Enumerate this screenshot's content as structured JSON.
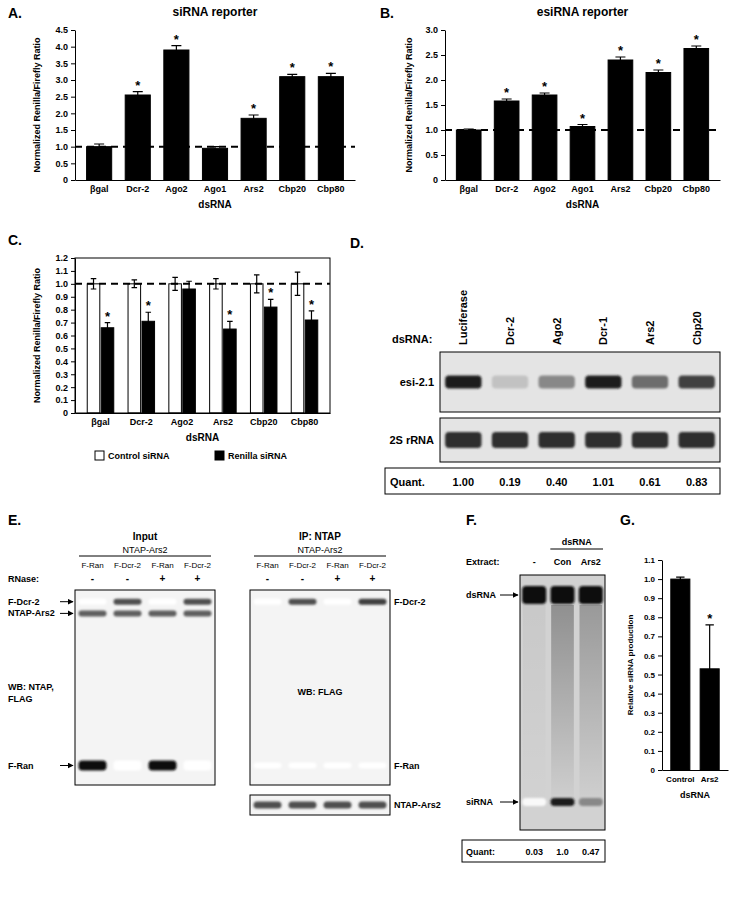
{
  "chart_data": [
    {
      "type": "bar",
      "panel_label": "A.",
      "title": "siRNA reporter",
      "x_label": "dsRNA",
      "y_label": "Normalized Renilla/Firefly Ratio",
      "categories": [
        "βgal",
        "Dcr-2",
        "Ago2",
        "Ago1",
        "Ars2",
        "Cbp20",
        "Cbp80"
      ],
      "values": [
        1.0,
        2.55,
        3.9,
        0.95,
        1.85,
        3.1,
        3.1
      ],
      "errors": [
        0.08,
        0.1,
        0.13,
        0.05,
        0.1,
        0.07,
        0.1
      ],
      "significance": [
        null,
        "*",
        "*",
        null,
        "*",
        "*",
        "*"
      ],
      "reference_line": 1,
      "color": "#000000",
      "ylim": [
        0,
        4.5
      ],
      "yticks": [
        0,
        0.5,
        {
          "value": 1,
          "label": "1.0"
        },
        1.5,
        {
          "value": 2,
          "label": "2.0"
        },
        2.5,
        {
          "value": 3,
          "label": "3.0"
        },
        3.5,
        {
          "value": 4,
          "label": "4.0"
        },
        4.5
      ]
    },
    {
      "type": "bar",
      "panel_label": "B.",
      "title": "esiRNA reporter",
      "x_label": "dsRNA",
      "y_label": "Normalized Renilla/Firefly Ratio",
      "categories": [
        "βgal",
        "Dcr-2",
        "Ago2",
        "Ago1",
        "Ars2",
        "Cbp20",
        "Cbp80"
      ],
      "values": [
        1.0,
        1.58,
        1.7,
        1.07,
        2.4,
        2.15,
        2.63
      ],
      "errors": [
        0.02,
        0.04,
        0.04,
        0.04,
        0.06,
        0.05,
        0.05
      ],
      "significance": [
        null,
        "*",
        "*",
        "*",
        "*",
        "*",
        "*"
      ],
      "reference_line": 1,
      "color": "#000000",
      "ylim": [
        0,
        3
      ],
      "yticks": [
        0,
        0.5,
        {
          "value": 1,
          "label": "1.0"
        },
        1.5,
        {
          "value": 2,
          "label": "2.0"
        },
        2.5,
        {
          "value": 3,
          "label": "3.0"
        }
      ]
    },
    {
      "type": "bar",
      "panel_label": "C.",
      "x_label": "dsRNA",
      "y_label": "Normalized Renilla/Firefly Ratio",
      "categories": [
        "βgal",
        "Dcr-2",
        "Ago2",
        "Ars2",
        "Cbp20",
        "Cbp80"
      ],
      "series": [
        {
          "name": "Control siRNA",
          "color": "#ffffff",
          "values": [
            1.0,
            1.0,
            1.0,
            1.0,
            1.0,
            1.0
          ],
          "errors": [
            0.04,
            0.03,
            0.05,
            0.04,
            0.07,
            0.09
          ]
        },
        {
          "name": "Renilla siRNA",
          "color": "#000000",
          "values": [
            0.66,
            0.71,
            0.96,
            0.65,
            0.82,
            0.72
          ],
          "errors": [
            0.04,
            0.07,
            0.06,
            0.06,
            0.06,
            0.07
          ],
          "significance": [
            "*",
            "*",
            null,
            "*",
            "*",
            "*"
          ]
        }
      ],
      "legend": "bottom",
      "reference_line": 1,
      "ylim": [
        0,
        1.2
      ],
      "yticks": [
        0,
        0.1,
        0.2,
        0.3,
        0.4,
        0.5,
        0.6,
        0.7,
        0.8,
        0.9,
        {
          "value": 1,
          "label": "1.0"
        },
        1.1,
        1.2
      ]
    },
    {
      "type": "bar",
      "panel_label": "G.",
      "x_label": "dsRNA",
      "y_label": "Relative siRNA production",
      "categories": [
        "Control",
        "Ars2"
      ],
      "values": [
        1.0,
        0.53
      ],
      "errors": [
        0.01,
        0.23
      ],
      "significance": [
        null,
        "*"
      ],
      "color": "#000000",
      "ylim": [
        0,
        1.1
      ],
      "yticks": [
        0,
        0.1,
        0.2,
        0.3,
        0.4,
        0.5,
        0.6,
        0.7,
        0.8,
        0.9,
        {
          "value": 1,
          "label": "1.0"
        },
        1.1
      ]
    }
  ],
  "blots": [
    {
      "type": "northern",
      "panel_label": "D.",
      "header": "dsRNA:",
      "lanes": [
        "Luciferase",
        "Dcr-2",
        "Ago2",
        "Dcr-1",
        "Ars2",
        "Cbp20"
      ],
      "rows": [
        {
          "label": "esi-2.1",
          "intensity": [
            0.9,
            0.35,
            0.55,
            0.9,
            0.65,
            0.8
          ]
        },
        {
          "label": "2S rRNA",
          "intensity": [
            0.85,
            0.85,
            0.85,
            0.85,
            0.85,
            0.85
          ]
        }
      ],
      "quant_label": "Quant.",
      "quant": [
        "1.00",
        "0.19",
        "0.40",
        "1.01",
        "0.61",
        "0.83"
      ]
    },
    {
      "type": "western",
      "panel_label": "E.",
      "rnase_label": "RNase:",
      "panels": [
        {
          "title": "Input",
          "subtitle": "NTAP-Ars2",
          "lanes": [
            "F-Ran",
            "F-Dcr-2",
            "F-Ran",
            "F-Dcr-2"
          ],
          "rnase": [
            "-",
            "-",
            "+",
            "+"
          ],
          "wb": [
            "WB: NTAP,",
            "FLAG"
          ],
          "rows": [
            {
              "label": "F-Dcr-2",
              "intensity": [
                0,
                0.75,
                0,
                0.75
              ]
            },
            {
              "label": "NTAP-Ars2",
              "intensity": [
                0.7,
                0.7,
                0.7,
                0.7
              ]
            },
            {
              "label": "F-Ran",
              "intensity": [
                0.95,
                0,
                0.95,
                0
              ]
            }
          ]
        },
        {
          "title": "IP: NTAP",
          "subtitle": "NTAP-Ars2",
          "lanes": [
            "F-Ran",
            "F-Dcr-2",
            "F-Ran",
            "F-Dcr-2"
          ],
          "rnase": [
            "-",
            "-",
            "+",
            "+"
          ],
          "wb": [
            "WB: FLAG"
          ],
          "rows": [
            {
              "label": "F-Dcr-2",
              "intensity": [
                0,
                0.75,
                0,
                0.8
              ]
            },
            {
              "label": "F-Ran",
              "intensity": [
                0,
                0,
                0,
                0
              ]
            }
          ],
          "strip": {
            "label": "NTAP-Ars2",
            "intensity": [
              0.75,
              0.75,
              0.75,
              0.75
            ]
          }
        }
      ]
    },
    {
      "type": "gel",
      "panel_label": "F.",
      "header": "dsRNA",
      "extract_label": "Extract:",
      "lanes": [
        "-",
        "Con",
        "Ars2"
      ],
      "markers": [
        {
          "label": "dsRNA",
          "intensity": [
            0.95,
            0.95,
            0.95
          ]
        },
        {
          "label": "siRNA",
          "intensity": [
            0.05,
            0.9,
            0.55
          ]
        }
      ],
      "smear": [
        0.05,
        0.35,
        0.3
      ],
      "quant_label": "Quant:",
      "quant": [
        "0.03",
        "1.0",
        "0.47"
      ]
    }
  ]
}
